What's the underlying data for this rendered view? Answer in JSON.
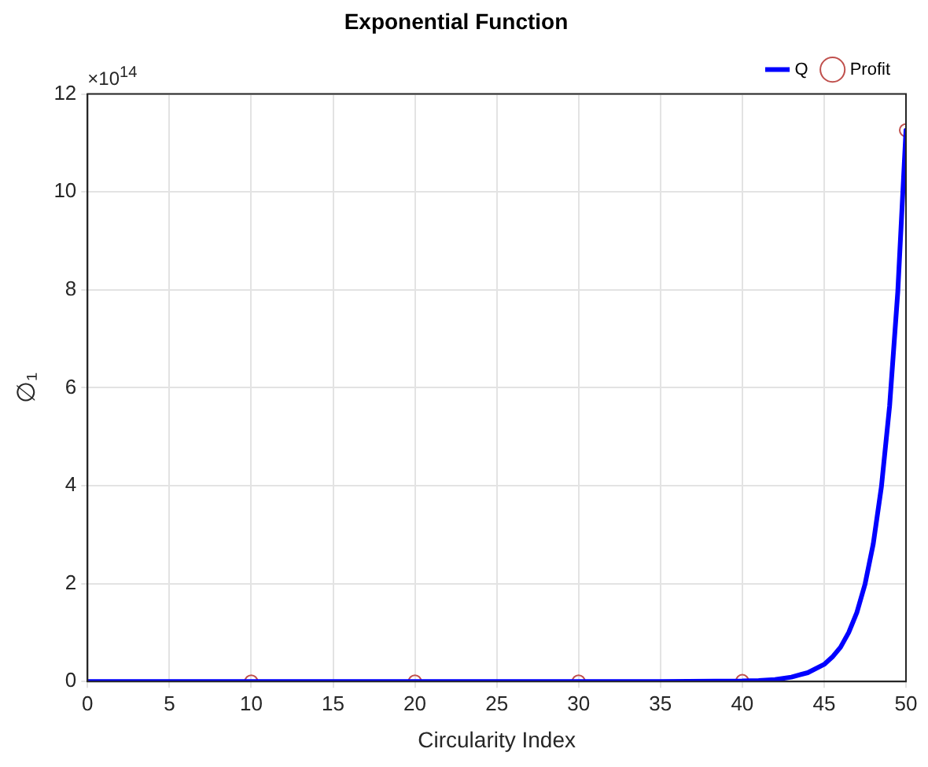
{
  "chart_data": {
    "type": "line",
    "title": "Exponential Function",
    "xlabel": "Circularity Index",
    "ylabel": "∅₁",
    "annotations": [
      "×10$^{14}$"
    ],
    "xlim": [
      0,
      50
    ],
    "xticks": [
      0,
      5,
      10,
      15,
      20,
      25,
      30,
      35,
      40,
      45,
      50
    ],
    "ylim": [
      0,
      12
    ],
    "yticks": [
      0,
      2,
      4,
      6,
      8,
      10,
      12
    ],
    "grid": true,
    "legend": "top right",
    "series": [
      {
        "name": "Q",
        "color": "#0000ff",
        "line_style": "solid",
        "x": [
          0,
          5,
          10,
          15,
          20,
          25,
          30,
          35,
          40,
          41,
          42,
          43,
          44,
          45,
          45.5,
          46,
          46.5,
          47,
          47.5,
          48,
          48.5,
          49,
          49.5,
          50
        ],
        "values": [
          0,
          0,
          0,
          0,
          0,
          0,
          0,
          0,
          0.01,
          0.02,
          0.04,
          0.09,
          0.18,
          0.35,
          0.5,
          0.7,
          1.0,
          1.41,
          1.99,
          2.81,
          3.98,
          5.63,
          7.96,
          11.26
        ]
      },
      {
        "name": "Profit",
        "type": "scatter",
        "color": "#c0504d",
        "marker": "circle",
        "x": [
          10,
          20,
          30,
          40,
          50
        ],
        "values": [
          0,
          0,
          0,
          0.01,
          11.26
        ]
      }
    ]
  }
}
